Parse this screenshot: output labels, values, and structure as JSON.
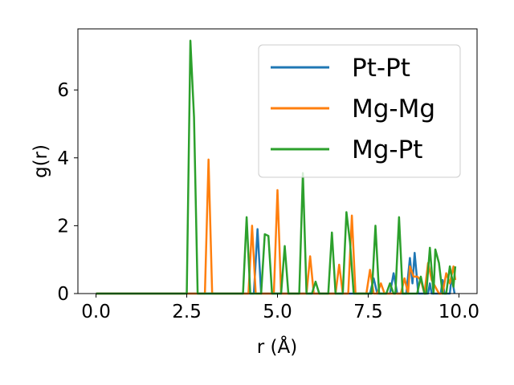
{
  "chart_data": {
    "type": "line",
    "title": "",
    "xlabel": "r (Å)",
    "ylabel": "g(r)",
    "xlim": [
      -0.5,
      10.5
    ],
    "ylim": [
      0,
      7.8
    ],
    "xticks": [
      0.0,
      2.5,
      5.0,
      7.5,
      10.0
    ],
    "xtick_labels": [
      "0.0",
      "2.5",
      "5.0",
      "7.5",
      "10.0"
    ],
    "yticks": [
      0,
      2,
      4,
      6
    ],
    "ytick_labels": [
      "0",
      "2",
      "4",
      "6"
    ],
    "grid": false,
    "legend_position": "top-right",
    "series": [
      {
        "name": "Pt-Pt",
        "color": "#1f77b4",
        "points": [
          [
            0.0,
            0
          ],
          [
            4.35,
            0
          ],
          [
            4.45,
            1.9
          ],
          [
            4.55,
            0
          ],
          [
            7.55,
            0
          ],
          [
            7.65,
            0.45
          ],
          [
            7.75,
            0
          ],
          [
            8.1,
            0
          ],
          [
            8.2,
            0.6
          ],
          [
            8.3,
            0
          ],
          [
            8.55,
            0
          ],
          [
            8.65,
            1.05
          ],
          [
            8.72,
            0.3
          ],
          [
            8.78,
            1.2
          ],
          [
            8.88,
            0
          ],
          [
            9.15,
            0
          ],
          [
            9.2,
            0.3
          ],
          [
            9.25,
            0
          ],
          [
            9.5,
            0
          ],
          [
            9.55,
            0.4
          ],
          [
            9.6,
            0
          ],
          [
            9.75,
            0
          ],
          [
            9.8,
            0.5
          ],
          [
            9.88,
            0
          ]
        ]
      },
      {
        "name": "Mg-Mg",
        "color": "#ff7f0e",
        "points": [
          [
            0.0,
            0
          ],
          [
            3.0,
            0
          ],
          [
            3.1,
            3.95
          ],
          [
            3.2,
            0
          ],
          [
            4.2,
            0
          ],
          [
            4.3,
            2.0
          ],
          [
            4.4,
            0
          ],
          [
            4.9,
            0
          ],
          [
            5.0,
            3.05
          ],
          [
            5.1,
            0
          ],
          [
            5.8,
            0
          ],
          [
            5.9,
            1.1
          ],
          [
            6.0,
            0
          ],
          [
            6.6,
            0
          ],
          [
            6.7,
            0.85
          ],
          [
            6.8,
            0
          ],
          [
            6.95,
            0
          ],
          [
            7.05,
            2.3
          ],
          [
            7.15,
            0
          ],
          [
            7.45,
            0
          ],
          [
            7.55,
            0.7
          ],
          [
            7.65,
            0
          ],
          [
            7.75,
            0
          ],
          [
            7.85,
            0.3
          ],
          [
            7.95,
            0
          ],
          [
            8.4,
            0
          ],
          [
            8.5,
            0.45
          ],
          [
            8.6,
            0
          ],
          [
            8.65,
            0.8
          ],
          [
            8.75,
            0.5
          ],
          [
            8.85,
            0.5
          ],
          [
            8.95,
            0.4
          ],
          [
            9.05,
            0
          ],
          [
            9.15,
            0.9
          ],
          [
            9.25,
            0.4
          ],
          [
            9.35,
            0.2
          ],
          [
            9.45,
            0
          ],
          [
            9.55,
            0
          ],
          [
            9.65,
            0.6
          ],
          [
            9.75,
            0.3
          ],
          [
            9.85,
            0.8
          ],
          [
            9.9,
            0.4
          ]
        ]
      },
      {
        "name": "Mg-Pt",
        "color": "#2ca02c",
        "points": [
          [
            0.0,
            0
          ],
          [
            2.5,
            0
          ],
          [
            2.6,
            7.45
          ],
          [
            2.7,
            5.2
          ],
          [
            2.8,
            0
          ],
          [
            4.05,
            0
          ],
          [
            4.15,
            2.25
          ],
          [
            4.25,
            0
          ],
          [
            4.55,
            0
          ],
          [
            4.65,
            1.75
          ],
          [
            4.75,
            1.7
          ],
          [
            4.85,
            0
          ],
          [
            5.1,
            0
          ],
          [
            5.2,
            1.4
          ],
          [
            5.3,
            0
          ],
          [
            5.6,
            0
          ],
          [
            5.7,
            3.55
          ],
          [
            5.8,
            0
          ],
          [
            5.95,
            0
          ],
          [
            6.05,
            0.35
          ],
          [
            6.15,
            0
          ],
          [
            6.4,
            0
          ],
          [
            6.5,
            1.8
          ],
          [
            6.6,
            0
          ],
          [
            6.8,
            0
          ],
          [
            6.9,
            2.4
          ],
          [
            7.0,
            1.5
          ],
          [
            7.1,
            0
          ],
          [
            7.6,
            0
          ],
          [
            7.7,
            2.0
          ],
          [
            7.8,
            0
          ],
          [
            8.0,
            0
          ],
          [
            8.1,
            0.3
          ],
          [
            8.2,
            0
          ],
          [
            8.25,
            0
          ],
          [
            8.35,
            2.25
          ],
          [
            8.45,
            0
          ],
          [
            8.85,
            0
          ],
          [
            8.95,
            0.5
          ],
          [
            9.05,
            0
          ],
          [
            9.1,
            0
          ],
          [
            9.2,
            1.35
          ],
          [
            9.3,
            0
          ],
          [
            9.35,
            1.3
          ],
          [
            9.45,
            0.9
          ],
          [
            9.55,
            0
          ],
          [
            9.65,
            0
          ],
          [
            9.75,
            0.8
          ],
          [
            9.85,
            0.2
          ],
          [
            9.9,
            0.8
          ]
        ]
      }
    ]
  }
}
